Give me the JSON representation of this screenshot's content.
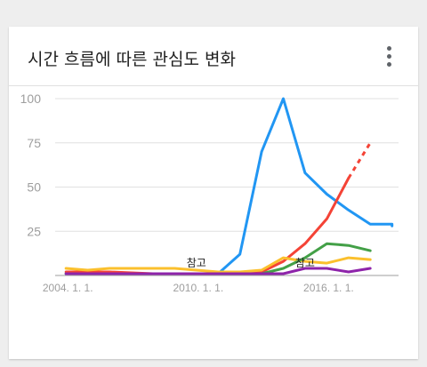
{
  "card": {
    "title": "시간 흐름에 따른 관심도 변화",
    "menu_icon": "more-vert-icon"
  },
  "chart_data": {
    "type": "line",
    "title": "시간 흐름에 따른 관심도 변화",
    "xlabel": "",
    "ylabel": "",
    "xlim": [
      2003.5,
      2019.3
    ],
    "ylim": [
      0,
      100
    ],
    "x_ticks": [
      {
        "value": 2004,
        "label": "2004. 1. 1."
      },
      {
        "value": 2010,
        "label": "2010. 1. 1."
      },
      {
        "value": 2016,
        "label": "2016. 1. 1."
      }
    ],
    "y_ticks": [
      {
        "value": 25,
        "label": "25"
      },
      {
        "value": 50,
        "label": "50"
      },
      {
        "value": 75,
        "label": "75"
      },
      {
        "value": 100,
        "label": "100"
      }
    ],
    "grid": true,
    "annotations": [
      {
        "x": 2010,
        "label": "참고"
      },
      {
        "x": 2015,
        "label": "참고"
      }
    ],
    "series": [
      {
        "color": "#2196f3",
        "x": [
          2004,
          2005,
          2006,
          2007,
          2008,
          2009,
          2010,
          2011,
          2012,
          2013,
          2014,
          2015,
          2016,
          2017,
          2018,
          2019
        ],
        "values": [
          1,
          1,
          1,
          1,
          1,
          1,
          1,
          1,
          12,
          70,
          100,
          58,
          46,
          37,
          29,
          29
        ],
        "x_end": 2019,
        "values_end": 28
      },
      {
        "color": "#f44336",
        "x": [
          2004,
          2006,
          2008,
          2010,
          2012,
          2013,
          2014,
          2015,
          2016,
          2017
        ],
        "values": [
          2,
          2,
          1,
          1,
          1,
          2,
          8,
          18,
          32,
          55
        ],
        "projection": {
          "x": [
            2017,
            2018
          ],
          "values": [
            55,
            75
          ]
        }
      },
      {
        "color": "#fbc02d",
        "x": [
          2004,
          2005,
          2006,
          2007,
          2008,
          2009,
          2010,
          2011,
          2012,
          2013,
          2014,
          2015,
          2016,
          2017,
          2018
        ],
        "values": [
          4,
          3,
          4,
          4,
          4,
          4,
          3,
          2,
          2,
          3,
          10,
          8,
          7,
          10,
          9
        ]
      },
      {
        "color": "#43a047",
        "x": [
          2004,
          2006,
          2008,
          2010,
          2012,
          2013,
          2014,
          2015,
          2016,
          2017,
          2018
        ],
        "values": [
          1,
          1,
          1,
          1,
          1,
          1,
          4,
          10,
          18,
          17,
          14
        ]
      },
      {
        "color": "#8e24aa",
        "x": [
          2004,
          2006,
          2008,
          2010,
          2012,
          2013,
          2014,
          2015,
          2016,
          2017,
          2018
        ],
        "values": [
          1,
          1,
          1,
          1,
          1,
          1,
          1,
          4,
          4,
          2,
          4
        ]
      }
    ]
  }
}
